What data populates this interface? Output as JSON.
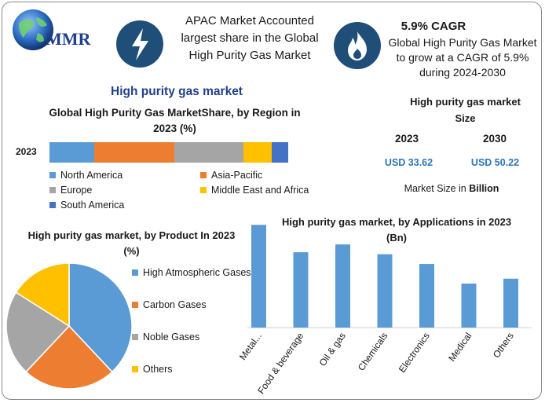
{
  "header": {
    "logo_text": "MMR",
    "callout1": "APAC Market Accounted largest share in the Global High Purity Gas Market",
    "callout2_title": "5.9% CAGR",
    "callout2": "Global High Purity Gas Market to grow at a CAGR of 5.9% during 2024-2030",
    "icon1": "lightning-icon",
    "icon2": "flame-icon"
  },
  "section_title": "High purity gas market",
  "market_size": {
    "title": "High purity gas market Size",
    "year1": "2023",
    "year2": "2030",
    "value1": "USD 33.62",
    "value2": "USD 50.22",
    "note_prefix": "Market Size in ",
    "note_bold": "Billion"
  },
  "colors": {
    "blue": "#5b9bd5",
    "orange": "#ed7d31",
    "gray": "#a5a5a5",
    "yellow": "#ffc000",
    "darkblue": "#4472c4",
    "navy": "#1f4e79"
  },
  "chart_data": [
    {
      "type": "bar",
      "orientation": "horizontal-stacked",
      "title": "Global High Purity Gas MarketShare, by Region in 2023 (%)",
      "categories": [
        "2023"
      ],
      "series": [
        {
          "name": "North America",
          "values": [
            16
          ]
        },
        {
          "name": "Asia-Pacific",
          "values": [
            29
          ]
        },
        {
          "name": "Europe",
          "values": [
            25
          ]
        },
        {
          "name": "Middle East and Africa",
          "values": [
            10
          ]
        },
        {
          "name": "South America",
          "values": [
            6
          ]
        }
      ],
      "legend": "bottom"
    },
    {
      "type": "pie",
      "title": "High purity gas market, by Product In 2023 (%)",
      "labels": [
        "High Atmospheric Gases",
        "Carbon Gases",
        "Noble Gases",
        "Others"
      ],
      "values": [
        38,
        24,
        22,
        16
      ],
      "legend": "right"
    },
    {
      "type": "bar",
      "title": "High purity gas market, by Applications in 2023 (Bn)",
      "categories": [
        "Metal...",
        "Food & beverage",
        "Oil & gas",
        "Chemicals",
        "Electronics",
        "Medical",
        "Others"
      ],
      "values": [
        10.5,
        7.7,
        8.5,
        7.5,
        6.5,
        4.5,
        5.0
      ],
      "ylim": [
        0,
        11
      ]
    }
  ]
}
